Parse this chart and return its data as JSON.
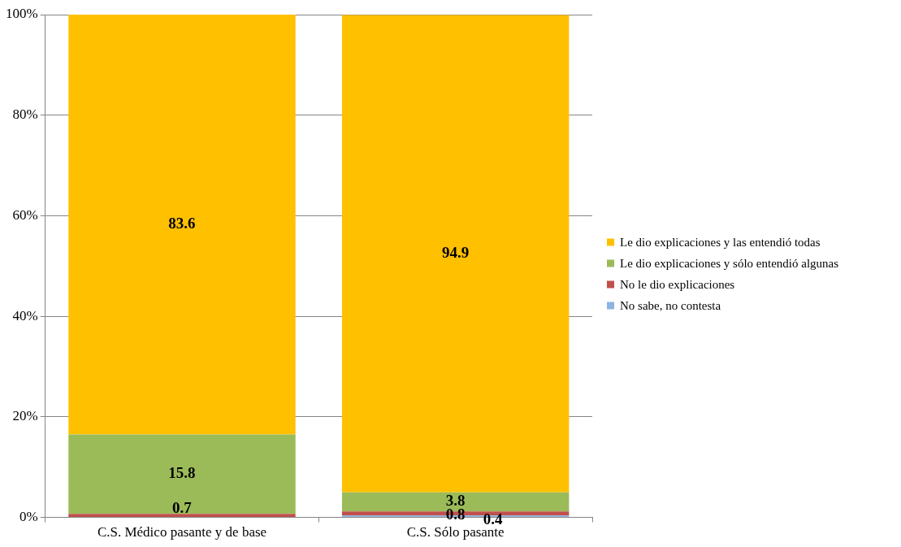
{
  "chart_data": {
    "type": "bar",
    "stacked": true,
    "categories": [
      "C.S. Médico pasante y de base",
      "C.S. Sólo pasante"
    ],
    "series": [
      {
        "name": "No sabe, no contesta",
        "color": "#8db4e2",
        "values": [
          null,
          0.4
        ]
      },
      {
        "name": "No le dio explicaciones",
        "color": "#c0504d",
        "values": [
          0.7,
          0.8
        ]
      },
      {
        "name": "Le dio explicaciones y sólo entendió algunas",
        "color": "#9bbb59",
        "values": [
          15.8,
          3.8
        ]
      },
      {
        "name": "Le dio explicaciones y las entendió todas",
        "color": "#ffc000",
        "values": [
          83.6,
          94.9
        ]
      }
    ],
    "ylim": [
      0,
      100
    ],
    "yticks": [
      {
        "value": 0,
        "label": "0%"
      },
      {
        "value": 20,
        "label": "20%"
      },
      {
        "value": 40,
        "label": "40%"
      },
      {
        "value": 60,
        "label": "60%"
      },
      {
        "value": 80,
        "label": "80%"
      },
      {
        "value": 100,
        "label": "100%"
      }
    ],
    "grid": "y",
    "legend": "right",
    "data_labels": true
  }
}
